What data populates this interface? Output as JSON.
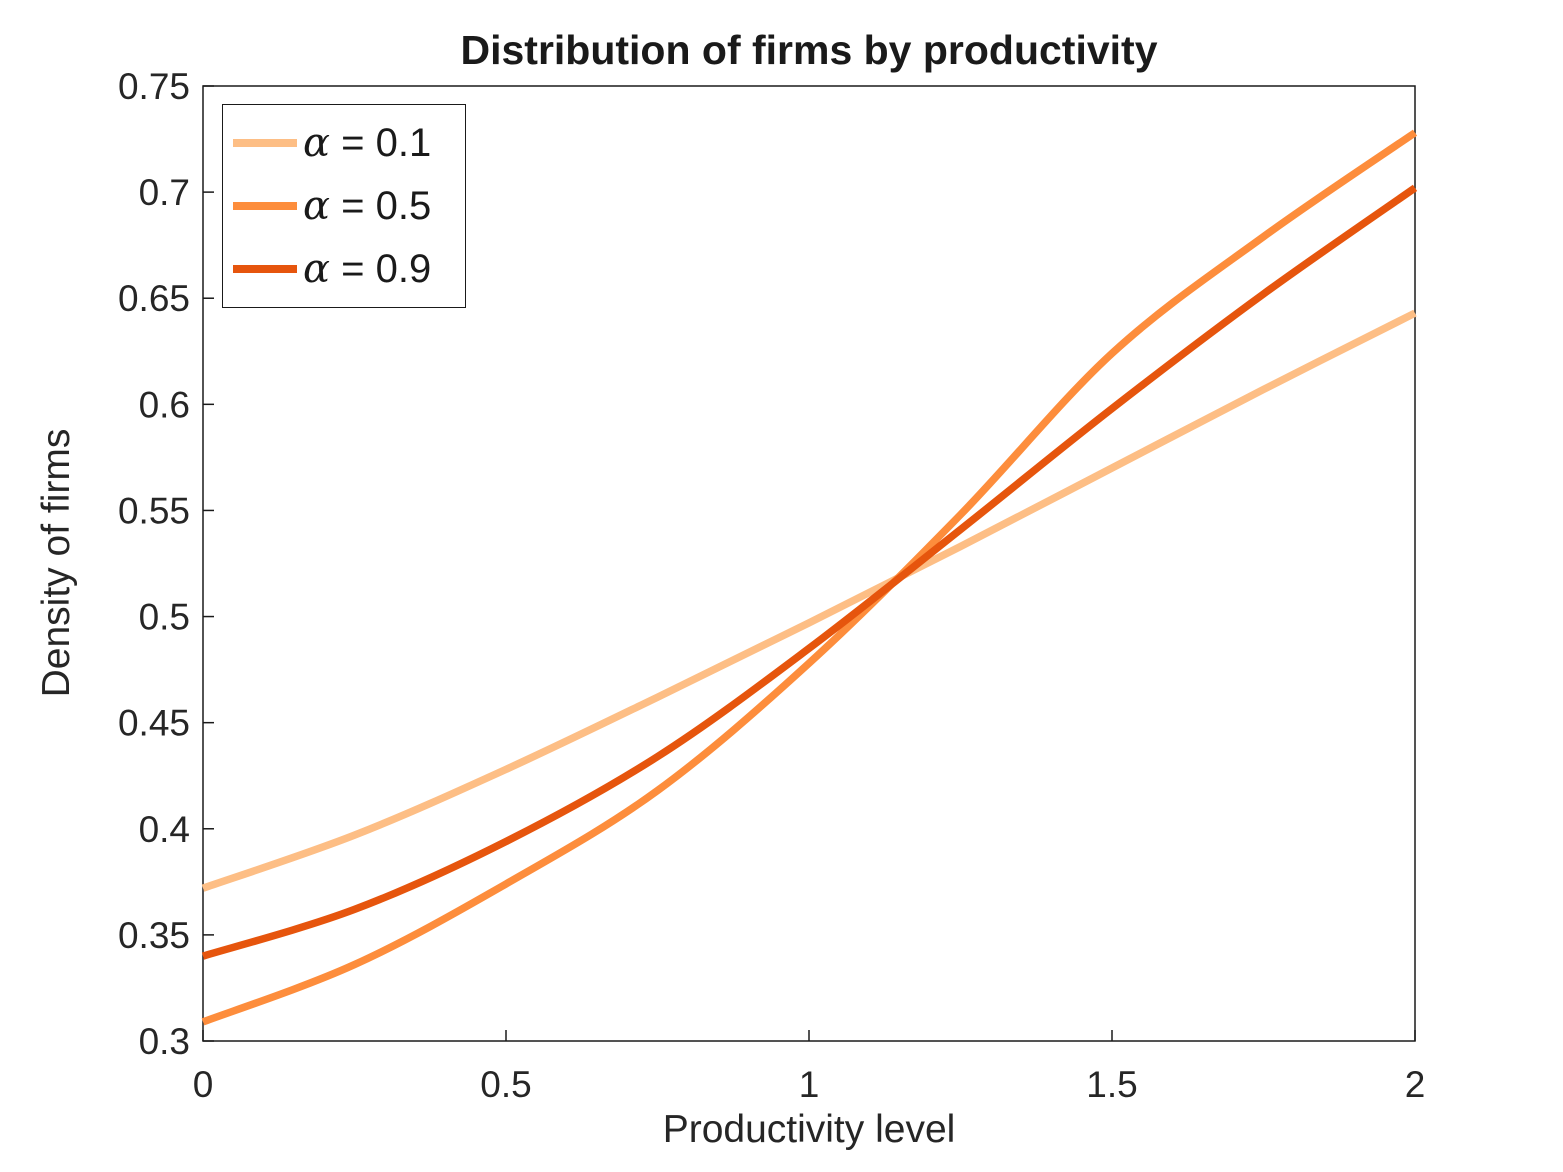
{
  "figure": {
    "title": "Distribution of firms by productivity",
    "xlabel": "Productivity level",
    "ylabel": "Density of firms"
  },
  "legend": {
    "items": [
      {
        "alpha": "α",
        "rest": " = 0.1",
        "color": "#FDBE85"
      },
      {
        "alpha": "α",
        "rest": " = 0.5",
        "color": "#FD8D3C"
      },
      {
        "alpha": "α",
        "rest": " = 0.9",
        "color": "#E6550D"
      }
    ]
  },
  "colors": {
    "axis": "#1a1a1a",
    "tick_text": "#262626",
    "background": "#ffffff",
    "series_light": "#FDBE85",
    "series_medium": "#FD8D3C",
    "series_dark": "#E6550D"
  },
  "chart_data": {
    "type": "line",
    "title": "Distribution of firms by productivity",
    "xlabel": "Productivity level",
    "ylabel": "Density of firms",
    "xlim": [
      0,
      2
    ],
    "ylim": [
      0.3,
      0.75
    ],
    "x_tick_values": [
      0,
      0.5,
      1,
      1.5,
      2
    ],
    "x_tick_labels": [
      "0",
      "0.5",
      "1",
      "1.5",
      "2"
    ],
    "y_tick_values": [
      0.3,
      0.35,
      0.4,
      0.45,
      0.5,
      0.55,
      0.6,
      0.65,
      0.7,
      0.75
    ],
    "y_tick_labels": [
      "0.3",
      "0.35",
      "0.4",
      "0.45",
      "0.5",
      "0.55",
      "0.6",
      "0.65",
      "0.7",
      "0.75"
    ],
    "grid": false,
    "legend_position": "top-left",
    "x": [
      0,
      0.25,
      0.5,
      0.75,
      1.0,
      1.25,
      1.5,
      1.75,
      2.0
    ],
    "series": [
      {
        "name": "α = 0.1",
        "color": "#FDBE85",
        "values": [
          0.372,
          0.397,
          0.428,
          0.462,
          0.497,
          0.533,
          0.57,
          0.607,
          0.643
        ]
      },
      {
        "name": "α = 0.5",
        "color": "#FD8D3C",
        "values": [
          0.309,
          0.336,
          0.374,
          0.418,
          0.478,
          0.548,
          0.624,
          0.679,
          0.728
        ]
      },
      {
        "name": "α = 0.9",
        "color": "#E6550D",
        "values": [
          0.34,
          0.362,
          0.394,
          0.434,
          0.485,
          0.541,
          0.598,
          0.652,
          0.702
        ]
      }
    ],
    "annotations": {
      "curves_cross_near": {
        "x": 1.05,
        "y": 0.5
      }
    }
  }
}
